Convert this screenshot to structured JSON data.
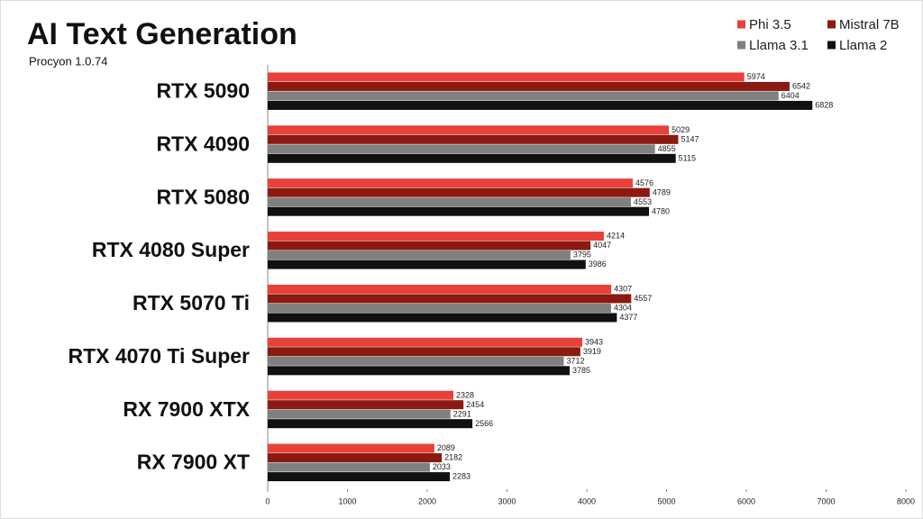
{
  "chart_data": {
    "type": "bar",
    "orientation": "horizontal",
    "title": "AI Text Generation",
    "subtitle": "Procyon 1.0.74",
    "categories": [
      "RTX 5090",
      "RTX 4090",
      "RTX 5080",
      "RTX 4080 Super",
      "RTX 5070 Ti",
      "RTX 4070 Ti Super",
      "RX 7900 XTX",
      "RX 7900 XT"
    ],
    "series": [
      {
        "name": "Phi 3.5",
        "color": "#e8413a",
        "values": [
          5974,
          5029,
          4576,
          4214,
          4307,
          3943,
          2328,
          2089
        ]
      },
      {
        "name": "Mistral 7B",
        "color": "#8b1a10",
        "values": [
          6542,
          5147,
          4789,
          4047,
          4557,
          3919,
          2454,
          2182
        ]
      },
      {
        "name": "Llama 3.1",
        "color": "#808080",
        "values": [
          6404,
          4855,
          4553,
          3795,
          4304,
          3712,
          2291,
          2033
        ]
      },
      {
        "name": "Llama 2",
        "color": "#111111",
        "values": [
          6828,
          5115,
          4780,
          3986,
          4377,
          3785,
          2566,
          2283
        ]
      }
    ],
    "xlim": [
      0,
      8000
    ],
    "xticks": [
      0,
      1000,
      2000,
      3000,
      4000,
      5000,
      6000,
      7000,
      8000
    ],
    "grid": false,
    "legend": "top-right"
  }
}
